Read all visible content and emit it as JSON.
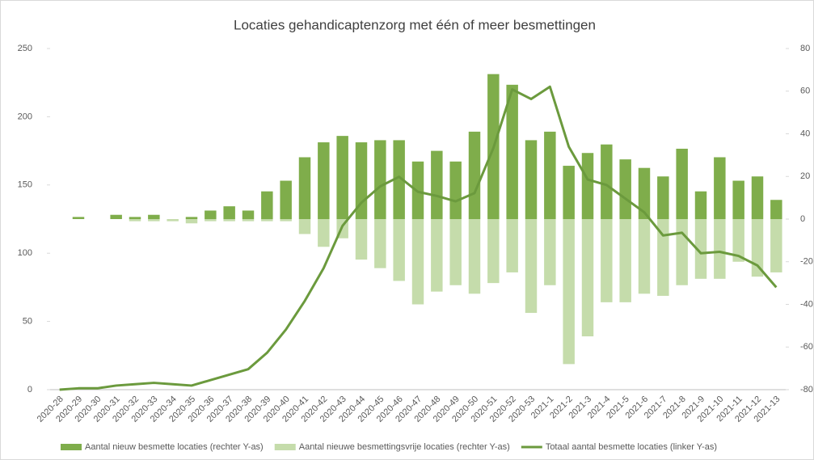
{
  "chart_data": {
    "type": "combo",
    "title": "Locaties gehandicaptenzorg met één of meer besmettingen",
    "categories": [
      "2020-28",
      "2020-29",
      "2020-30",
      "2020-31",
      "2020-32",
      "2020-33",
      "2020-34",
      "2020-35",
      "2020-36",
      "2020-37",
      "2020-38",
      "2020-39",
      "2020-40",
      "2020-41",
      "2020-42",
      "2020-43",
      "2020-44",
      "2020-45",
      "2020-46",
      "2020-47",
      "2020-48",
      "2020-49",
      "2020-50",
      "2020-51",
      "2020-52",
      "2020-53",
      "2021-1",
      "2021-2",
      "2021-3",
      "2021-4",
      "2021-5",
      "2021-6",
      "2021-7",
      "2021-8",
      "2021-9",
      "2021-10",
      "2021-11",
      "2021-12",
      "2021-13"
    ],
    "series": [
      {
        "name": "Aantal nieuw besmette locaties (rechter Y-as)",
        "type": "bar",
        "axis": "y2",
        "color": "#7fad4b",
        "values": [
          0,
          1,
          0,
          2,
          1,
          2,
          0,
          1,
          4,
          6,
          4,
          13,
          18,
          29,
          36,
          39,
          36,
          37,
          37,
          27,
          32,
          27,
          41,
          68,
          63,
          37,
          41,
          25,
          31,
          35,
          28,
          24,
          20,
          33,
          13,
          29,
          18,
          20,
          9
        ]
      },
      {
        "name": "Aantal nieuwe besmettingsvrije locaties (rechter Y-as)",
        "type": "bar",
        "axis": "y2",
        "color": "#c5dcab",
        "values": [
          0,
          0,
          0,
          0,
          -1,
          -1,
          -1,
          -2,
          -1,
          -1,
          -1,
          -1,
          -1,
          -7,
          -13,
          -9,
          -19,
          -23,
          -29,
          -40,
          -34,
          -31,
          -35,
          -30,
          -25,
          -44,
          -31,
          -68,
          -55,
          -39,
          -39,
          -35,
          -36,
          -31,
          -28,
          -28,
          -20,
          -27,
          -25
        ]
      },
      {
        "name": "Totaal aantal besmette locaties (linker Y-as)",
        "type": "line",
        "color": "#6b9a3d",
        "values": [
          0,
          1,
          1,
          3,
          4,
          5,
          4,
          3,
          7,
          11,
          15,
          27,
          44,
          65,
          89,
          120,
          137,
          149,
          156,
          145,
          142,
          138,
          144,
          177,
          220,
          213,
          222,
          178,
          154,
          150,
          140,
          130,
          113,
          115,
          100,
          101,
          98,
          91,
          75
        ]
      }
    ],
    "ylim": [
      0,
      250
    ],
    "yticks": [
      0,
      50,
      100,
      150,
      200,
      250
    ],
    "y2lim": [
      -80,
      80
    ],
    "y2ticks": [
      80,
      60,
      40,
      20,
      0,
      -20,
      -40,
      -60,
      -80
    ],
    "legend": "bottom"
  }
}
